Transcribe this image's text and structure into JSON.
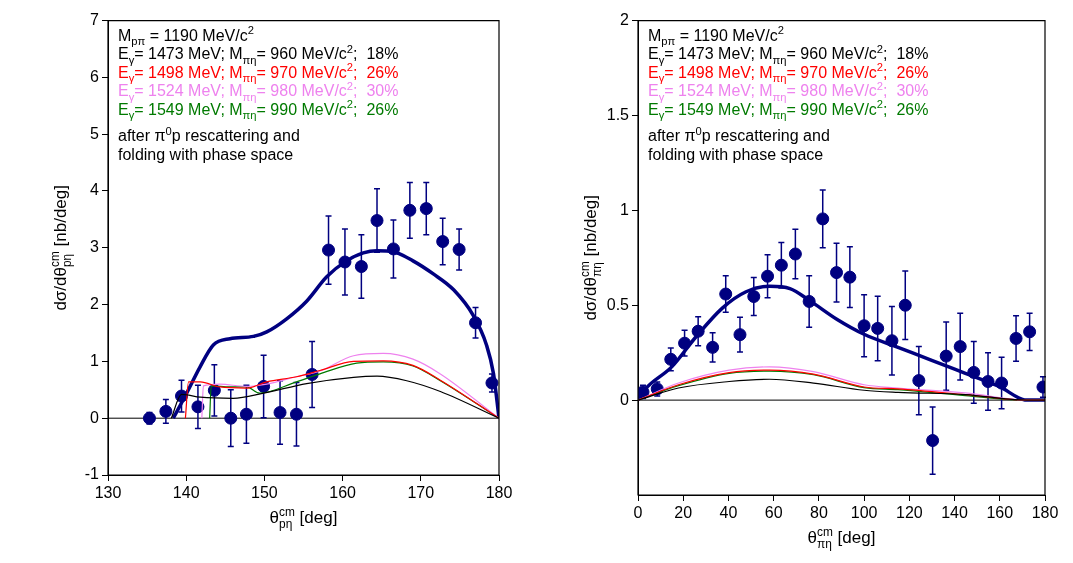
{
  "chart_data": [
    {
      "type": "scatter",
      "xlabel": "θ$^{cm}$$_{pη}$ [deg]",
      "ylabel": "dσ/dθ$^{cm}$$_{pη}$ [nb/deg]",
      "legend_title": "M$_{pπ}$ = 1190 MeV/c$^{2}$",
      "legend": "top left",
      "annotations": [
        "after π$^{0}$p rescattering and",
        "folding with phase space"
      ],
      "xlim": [
        130,
        180
      ],
      "xticks": [
        130,
        140,
        150,
        160,
        170,
        180
      ],
      "ylim": [
        -1,
        7
      ],
      "yticks": [
        -1,
        0,
        1,
        2,
        3,
        4,
        5,
        6,
        7
      ],
      "grid": false,
      "ref_lines": [
        {
          "axis": "y",
          "value": 0,
          "color": "#000000"
        }
      ],
      "series": [
        {
          "type": "line",
          "name": "E$_{γ}$= 1473 MeV; M$_{πη}$= 960 MeV/c$^{2}$;  18%",
          "color": "#000000",
          "marker": "none",
          "x": [
            138.1,
            139.4,
            141.8,
            146.0,
            149.9,
            155.4,
            161.4,
            164.4,
            168.2,
            172.5,
            180
          ],
          "values": [
            0,
            0.42,
            0.37,
            0.35,
            0.44,
            0.61,
            0.72,
            0.74,
            0.66,
            0.47,
            0
          ]
        },
        {
          "type": "line",
          "name": "E$_{γ}$= 1498 MeV; M$_{πη}$= 970 MeV/c$^{2}$;  26%",
          "color": "#ff0000",
          "marker": "none",
          "x": [
            139.9,
            140.3,
            141.8,
            144.3,
            147.7,
            150.3,
            154.1,
            157.1,
            161.4,
            165.2,
            169.0,
            172.5,
            180
          ],
          "values": [
            0,
            0.64,
            0.64,
            0.55,
            0.53,
            0.64,
            0.73,
            0.84,
            1.0,
            1.01,
            0.93,
            0.67,
            0
          ]
        },
        {
          "type": "line",
          "name": "E$_{γ}$= 1524 MeV; M$_{πη}$= 980 MeV/c$^{2}$;  30%",
          "color": "#ee82ee",
          "marker": "none",
          "x": [
            142.0,
            142.2,
            144.3,
            147.7,
            150.3,
            154.1,
            157.1,
            161.4,
            165.2,
            169.0,
            172.5,
            180
          ],
          "values": [
            0,
            0.57,
            0.6,
            0.56,
            0.6,
            0.73,
            0.83,
            1.1,
            1.14,
            1.04,
            0.78,
            0
          ]
        },
        {
          "type": "line",
          "name": "E$_{γ}$= 1549 MeV; M$_{πη}$= 990 MeV/c$^{2}$;  26%",
          "color": "#007a00",
          "marker": "none",
          "x": [
            143.0,
            143.2,
            145.6,
            147.7,
            149.4,
            154.1,
            157.1,
            161.8,
            165.2,
            169.0,
            172.5,
            180
          ],
          "values": [
            0,
            0.57,
            0.55,
            0.55,
            0.44,
            0.64,
            0.78,
            0.97,
            0.99,
            0.92,
            0.66,
            0
          ]
        },
        {
          "type": "line",
          "color": "#000080",
          "marker": "none",
          "x": [
            138.35,
            140.06,
            141.76,
            143.47,
            145.6,
            148.6,
            150.3,
            152.85,
            155.4,
            157.97,
            160.5,
            162.65,
            164.36,
            166.5,
            169.0,
            171.6,
            174.2,
            176.7,
            178.4,
            179.3,
            180
          ],
          "values": [
            0,
            0.44,
            0.9,
            1.29,
            1.4,
            1.44,
            1.52,
            1.75,
            2.06,
            2.49,
            2.77,
            2.91,
            2.95,
            2.93,
            2.77,
            2.54,
            2.26,
            1.81,
            1.29,
            0.78,
            0
          ]
        },
        {
          "type": "scatter",
          "color": "#000080",
          "marker": "circle",
          "x": [
            135.3,
            137.4,
            139.4,
            141.5,
            143.6,
            145.7,
            147.7,
            149.9,
            152.0,
            154.1,
            156.1,
            158.2,
            160.3,
            162.4,
            164.4,
            166.5,
            168.6,
            170.7,
            172.8,
            174.9,
            177.0,
            179.1
          ],
          "values": [
            0.0,
            0.12,
            0.39,
            0.2,
            0.49,
            0.0,
            0.07,
            0.56,
            0.1,
            0.07,
            0.77,
            2.96,
            2.75,
            2.67,
            3.48,
            2.98,
            3.66,
            3.69,
            3.11,
            2.97,
            1.68,
            0.62
          ],
          "errors": [
            0.1,
            0.21,
            0.28,
            0.38,
            0.45,
            0.5,
            0.51,
            0.55,
            0.56,
            0.56,
            0.58,
            0.6,
            0.58,
            0.56,
            0.56,
            0.51,
            0.49,
            0.46,
            0.41,
            0.36,
            0.27,
            0.16
          ]
        }
      ]
    },
    {
      "type": "scatter",
      "xlabel": "θ$^{cm}$$_{πη}$ [deg]",
      "ylabel": "dσ/dθ$^{cm}$$_{πη}$ [nb/deg]",
      "legend_title": "M$_{pπ}$ = 1190 MeV/c$^{2}$",
      "legend": "top left",
      "annotations": [
        "after π$^{0}$p rescattering and",
        "folding with phase space"
      ],
      "xlim": [
        0,
        180
      ],
      "xticks": [
        0,
        20,
        40,
        60,
        80,
        100,
        120,
        140,
        160,
        180
      ],
      "ylim": [
        -0.5,
        2
      ],
      "yticks": [
        0,
        0.5,
        1,
        1.5,
        2
      ],
      "grid": false,
      "ref_lines": [
        {
          "axis": "y",
          "value": 0,
          "color": "#000000"
        }
      ],
      "series": [
        {
          "type": "line",
          "name": "E$_{γ}$= 1473 MeV; M$_{πη}$= 960 MeV/c$^{2}$;  18%",
          "color": "#000000",
          "marker": "none",
          "x": [
            0,
            17.9,
            40.3,
            58.2,
            77.6,
            100,
            115,
            144.8,
            172,
            180
          ],
          "values": [
            0,
            0.064,
            0.098,
            0.11,
            0.09,
            0.052,
            0.041,
            0.029,
            0,
            0
          ]
        },
        {
          "type": "line",
          "name": "E$_{γ}$= 1498 MeV; M$_{πη}$= 970 MeV/c$^{2}$;  26%",
          "color": "#ff0000",
          "marker": "none",
          "x": [
            0,
            17.9,
            40.3,
            58.2,
            77.6,
            100,
            115,
            144.8,
            172,
            180
          ],
          "values": [
            0,
            0.081,
            0.145,
            0.158,
            0.137,
            0.069,
            0.059,
            0.029,
            0,
            0
          ]
        },
        {
          "type": "line",
          "name": "E$_{γ}$= 1524 MeV; M$_{πη}$= 980 MeV/c$^{2}$;  30%",
          "color": "#ee82ee",
          "marker": "none",
          "x": [
            0,
            17.9,
            40.3,
            58.2,
            77.6,
            100,
            115,
            144.8,
            172,
            180
          ],
          "values": [
            0,
            0.09,
            0.158,
            0.175,
            0.15,
            0.081,
            0.064,
            0.038,
            0,
            0
          ]
        },
        {
          "type": "line",
          "name": "E$_{γ}$= 1549 MeV; M$_{πη}$= 990 MeV/c$^{2}$;  26%",
          "color": "#007a00",
          "marker": "none",
          "x": [
            0,
            17.9,
            40.3,
            58.2,
            77.6,
            100,
            115,
            144.8,
            172,
            180
          ],
          "values": [
            0,
            0.076,
            0.141,
            0.153,
            0.134,
            0.066,
            0.055,
            0.024,
            0,
            0
          ]
        },
        {
          "type": "line",
          "color": "#000080",
          "marker": "none",
          "x": [
            0,
            3.0,
            14.9,
            25.4,
            37.3,
            47.8,
            58.2,
            67.2,
            76.1,
            88.1,
            100,
            115,
            129.9,
            144.8,
            159.7,
            172,
            180
          ],
          "values": [
            0,
            0.055,
            0.175,
            0.33,
            0.485,
            0.571,
            0.6,
            0.588,
            0.523,
            0.425,
            0.347,
            0.278,
            0.21,
            0.141,
            0.072,
            0,
            0
          ]
        },
        {
          "type": "scatter",
          "color": "#000080",
          "marker": "circle",
          "x": [
            2.2,
            8.5,
            14.5,
            20.6,
            26.6,
            33.0,
            38.8,
            45.1,
            51.2,
            57.3,
            63.4,
            69.6,
            75.7,
            81.7,
            87.8,
            93.7,
            100.0,
            106.0,
            112.3,
            118.2,
            124.2,
            130.3,
            136.3,
            142.5,
            148.5,
            154.8,
            160.8,
            167.2,
            173.2,
            179.1
          ],
          "values": [
            0.043,
            0.059,
            0.215,
            0.3,
            0.363,
            0.278,
            0.559,
            0.345,
            0.546,
            0.653,
            0.711,
            0.77,
            0.52,
            0.955,
            0.672,
            0.648,
            0.392,
            0.378,
            0.313,
            0.5,
            0.103,
            -0.213,
            0.232,
            0.282,
            0.146,
            0.098,
            0.09,
            0.325,
            0.36,
            0.069
          ],
          "errors": [
            0.035,
            0.037,
            0.06,
            0.068,
            0.076,
            0.077,
            0.096,
            0.092,
            0.1,
            0.113,
            0.12,
            0.13,
            0.136,
            0.152,
            0.155,
            0.16,
            0.163,
            0.17,
            0.18,
            0.18,
            0.18,
            0.177,
            0.18,
            0.176,
            0.163,
            0.152,
            0.136,
            0.12,
            0.098,
            0.054
          ]
        }
      ]
    }
  ]
}
